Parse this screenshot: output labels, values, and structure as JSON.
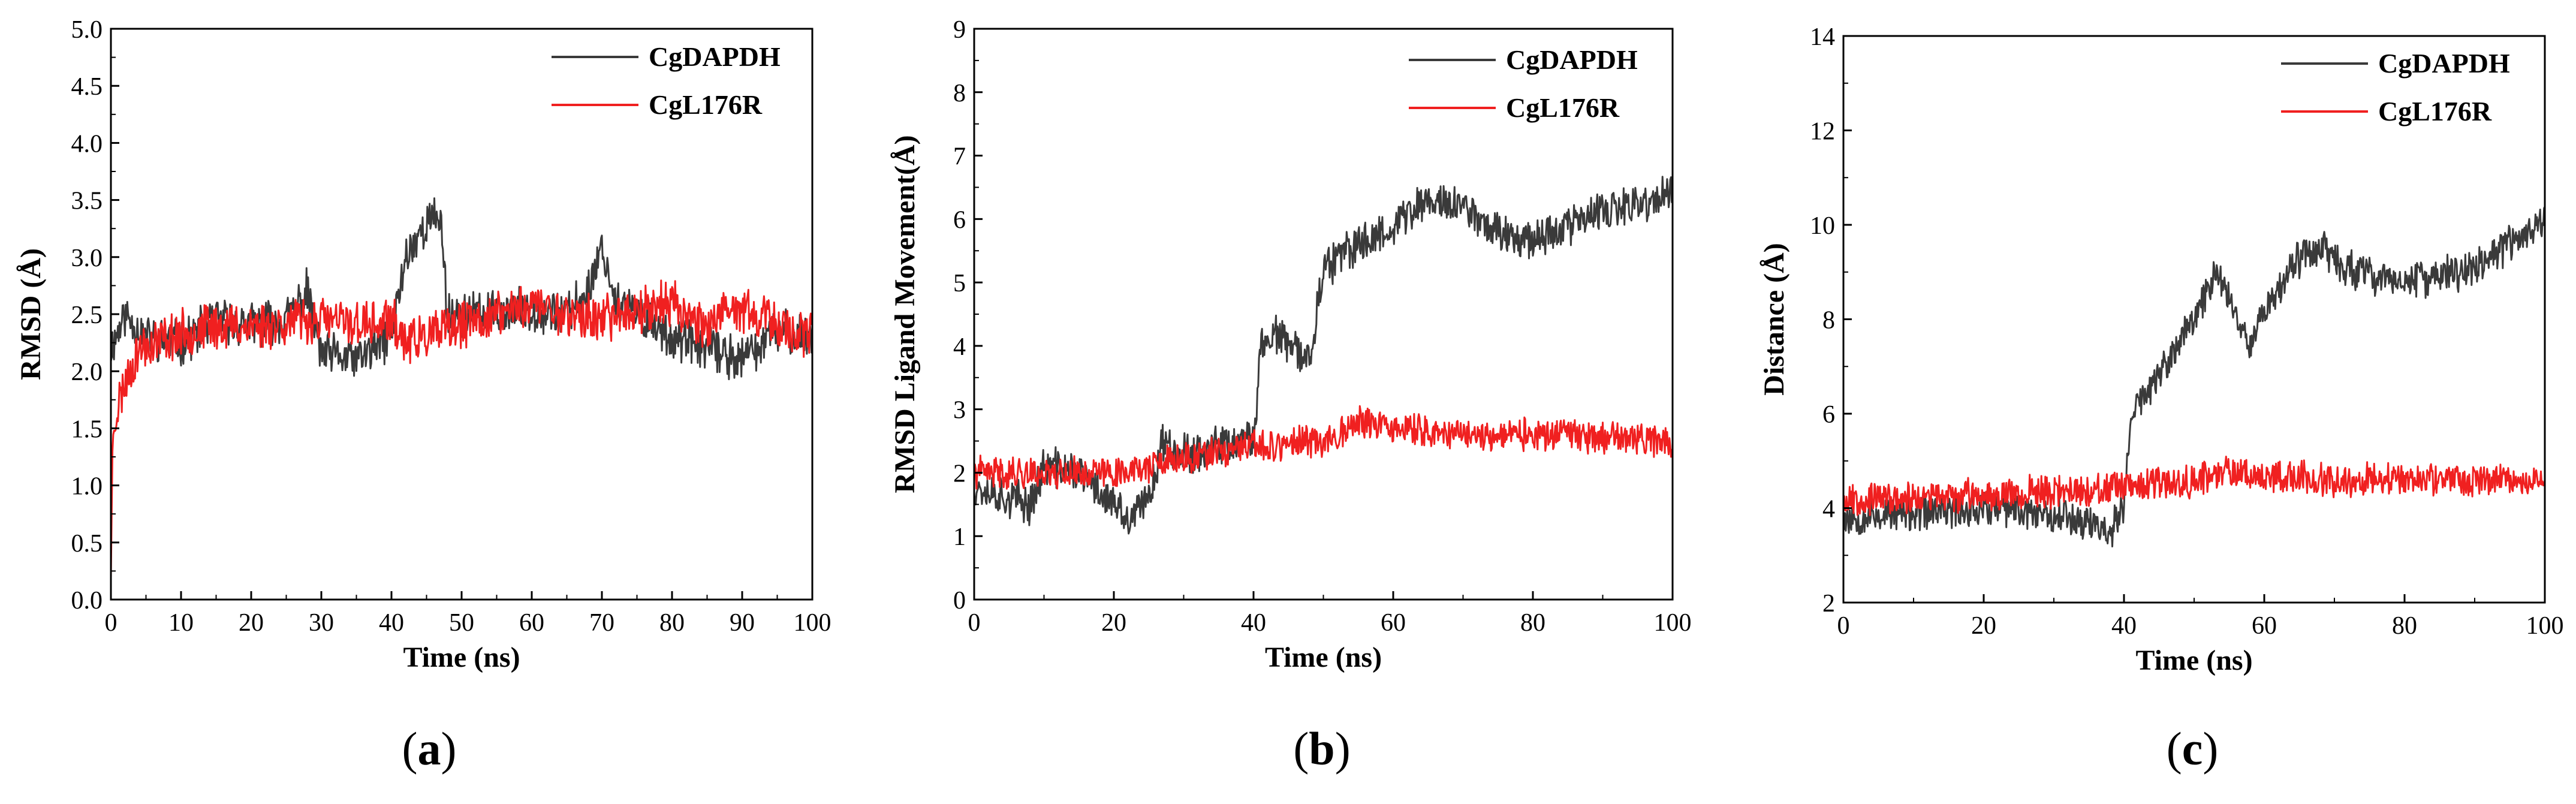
{
  "figure": {
    "panels": [
      "a",
      "b",
      "c"
    ]
  },
  "chart_data": [
    {
      "type": "line",
      "panel_label": "a",
      "xlabel": "Time (ns)",
      "ylabel": "RMSD (Å)",
      "xlim": [
        0,
        100
      ],
      "ylim": [
        0,
        5
      ],
      "xticks": [
        0,
        10,
        20,
        30,
        40,
        50,
        60,
        70,
        80,
        90,
        100
      ],
      "yticks": [
        0.0,
        0.5,
        1.0,
        1.5,
        2.0,
        2.5,
        3.0,
        3.5,
        4.0,
        4.5,
        5.0
      ],
      "ytick_decimals": 1,
      "legend_position": "top-right",
      "series": [
        {
          "name": "CgDAPDH",
          "color": "#3a3a3a",
          "keypoints": [
            [
              0,
              2.2
            ],
            [
              2,
              2.5
            ],
            [
              5,
              2.3
            ],
            [
              10,
              2.25
            ],
            [
              15,
              2.45
            ],
            [
              20,
              2.4
            ],
            [
              25,
              2.45
            ],
            [
              28,
              2.7
            ],
            [
              30,
              2.15
            ],
            [
              35,
              2.1
            ],
            [
              40,
              2.3
            ],
            [
              42,
              3.0
            ],
            [
              45,
              3.3
            ],
            [
              47,
              3.35
            ],
            [
              48,
              2.5
            ],
            [
              52,
              2.5
            ],
            [
              55,
              2.5
            ],
            [
              60,
              2.55
            ],
            [
              65,
              2.5
            ],
            [
              68,
              2.7
            ],
            [
              70,
              3.1
            ],
            [
              72,
              2.6
            ],
            [
              75,
              2.5
            ],
            [
              80,
              2.3
            ],
            [
              85,
              2.2
            ],
            [
              90,
              2.1
            ],
            [
              95,
              2.35
            ],
            [
              100,
              2.3
            ]
          ],
          "noise": 0.17,
          "seed": 11
        },
        {
          "name": "CgL176R",
          "color": "#f02020",
          "keypoints": [
            [
              0,
              0.3
            ],
            [
              0.3,
              1.5
            ],
            [
              1,
              1.7
            ],
            [
              2,
              1.9
            ],
            [
              4,
              2.2
            ],
            [
              8,
              2.3
            ],
            [
              15,
              2.4
            ],
            [
              20,
              2.4
            ],
            [
              30,
              2.45
            ],
            [
              38,
              2.4
            ],
            [
              40,
              2.45
            ],
            [
              42,
              2.25
            ],
            [
              45,
              2.3
            ],
            [
              48,
              2.35
            ],
            [
              50,
              2.4
            ],
            [
              55,
              2.5
            ],
            [
              60,
              2.6
            ],
            [
              65,
              2.5
            ],
            [
              70,
              2.45
            ],
            [
              75,
              2.55
            ],
            [
              80,
              2.6
            ],
            [
              85,
              2.4
            ],
            [
              90,
              2.55
            ],
            [
              95,
              2.4
            ],
            [
              100,
              2.3
            ]
          ],
          "noise": 0.18,
          "seed": 23
        }
      ]
    },
    {
      "type": "line",
      "panel_label": "b",
      "xlabel": "Time (ns)",
      "ylabel": "RMSD Ligand Movement(Å)",
      "xlim": [
        0,
        100
      ],
      "ylim": [
        0,
        9
      ],
      "xticks": [
        0,
        20,
        40,
        60,
        80,
        100
      ],
      "yticks": [
        0,
        1,
        2,
        3,
        4,
        5,
        6,
        7,
        8,
        9
      ],
      "ytick_decimals": 0,
      "legend_position": "top-right",
      "series": [
        {
          "name": "CgDAPDH",
          "color": "#3a3a3a",
          "keypoints": [
            [
              0,
              1.8
            ],
            [
              5,
              1.6
            ],
            [
              8,
              1.5
            ],
            [
              10,
              2.1
            ],
            [
              15,
              2.0
            ],
            [
              20,
              1.5
            ],
            [
              22,
              1.2
            ],
            [
              25,
              1.6
            ],
            [
              27,
              2.5
            ],
            [
              30,
              2.3
            ],
            [
              35,
              2.4
            ],
            [
              40,
              2.5
            ],
            [
              41,
              4.0
            ],
            [
              43,
              4.2
            ],
            [
              46,
              3.9
            ],
            [
              48,
              3.8
            ],
            [
              50,
              5.2
            ],
            [
              55,
              5.6
            ],
            [
              60,
              5.9
            ],
            [
              65,
              6.3
            ],
            [
              70,
              6.2
            ],
            [
              75,
              5.8
            ],
            [
              80,
              5.7
            ],
            [
              85,
              5.9
            ],
            [
              90,
              6.1
            ],
            [
              95,
              6.2
            ],
            [
              100,
              6.4
            ]
          ],
          "noise": 0.28,
          "seed": 37
        },
        {
          "name": "CgL176R",
          "color": "#f02020",
          "keypoints": [
            [
              0,
              2.0
            ],
            [
              10,
              2.0
            ],
            [
              20,
              2.0
            ],
            [
              30,
              2.2
            ],
            [
              40,
              2.4
            ],
            [
              50,
              2.5
            ],
            [
              55,
              2.8
            ],
            [
              60,
              2.7
            ],
            [
              70,
              2.6
            ],
            [
              80,
              2.6
            ],
            [
              90,
              2.55
            ],
            [
              100,
              2.5
            ]
          ],
          "noise": 0.22,
          "seed": 41
        }
      ]
    },
    {
      "type": "line",
      "panel_label": "c",
      "xlabel": "Time (ns)",
      "ylabel": "Distance (Å)",
      "xlim": [
        0,
        100
      ],
      "ylim": [
        2,
        14
      ],
      "xticks": [
        0,
        20,
        40,
        60,
        80,
        100
      ],
      "yticks": [
        2,
        4,
        6,
        8,
        10,
        12,
        14
      ],
      "ytick_decimals": 0,
      "legend_position": "top-right",
      "series": [
        {
          "name": "CgDAPDH",
          "color": "#3a3a3a",
          "keypoints": [
            [
              0,
              3.8
            ],
            [
              10,
              3.9
            ],
            [
              20,
              4.0
            ],
            [
              30,
              3.9
            ],
            [
              35,
              3.7
            ],
            [
              38,
              3.5
            ],
            [
              40,
              4.0
            ],
            [
              41,
              6.0
            ],
            [
              45,
              6.8
            ],
            [
              50,
              8.0
            ],
            [
              53,
              9.0
            ],
            [
              55,
              8.5
            ],
            [
              58,
              7.5
            ],
            [
              60,
              8.2
            ],
            [
              65,
              9.3
            ],
            [
              68,
              9.6
            ],
            [
              70,
              9.2
            ],
            [
              75,
              8.9
            ],
            [
              80,
              8.8
            ],
            [
              85,
              8.9
            ],
            [
              90,
              9.1
            ],
            [
              95,
              9.6
            ],
            [
              100,
              10.1
            ]
          ],
          "noise": 0.35,
          "seed": 53
        },
        {
          "name": "CgL176R",
          "color": "#f02020",
          "keypoints": [
            [
              0,
              4.2
            ],
            [
              10,
              4.2
            ],
            [
              20,
              4.3
            ],
            [
              30,
              4.35
            ],
            [
              40,
              4.4
            ],
            [
              50,
              4.6
            ],
            [
              55,
              4.8
            ],
            [
              60,
              4.7
            ],
            [
              70,
              4.6
            ],
            [
              80,
              4.6
            ],
            [
              90,
              4.6
            ],
            [
              100,
              4.6
            ]
          ],
          "noise": 0.3,
          "seed": 67
        }
      ]
    }
  ]
}
